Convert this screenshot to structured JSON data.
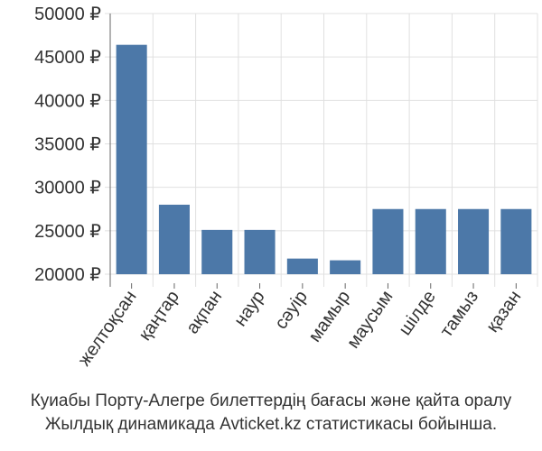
{
  "chart_data": {
    "type": "bar",
    "categories": [
      "желтоқсан",
      "қаңтар",
      "ақпан",
      "наур",
      "сәуір",
      "мамыр",
      "маусым",
      "шілде",
      "тамыз",
      "қазан"
    ],
    "values": [
      46400,
      28000,
      25100,
      25100,
      21800,
      21600,
      27500,
      27500,
      27500,
      27500
    ],
    "ylim": [
      20000,
      50000
    ],
    "yticks": [
      20000,
      25000,
      30000,
      35000,
      40000,
      45000,
      50000
    ],
    "ytick_labels": [
      "20000 ₽",
      "25000 ₽",
      "30000 ₽",
      "35000 ₽",
      "40000 ₽",
      "45000 ₽",
      "50000 ₽"
    ],
    "grid": true,
    "bar_color": "#4c78a8",
    "grid_color": "#e0e0e0"
  },
  "caption": {
    "line1": "Куиабы Порту-Алегре билеттердің бағасы және қайта оралу",
    "line2": "Жылдық динамикада Avticket.kz статистикасы бойынша."
  }
}
